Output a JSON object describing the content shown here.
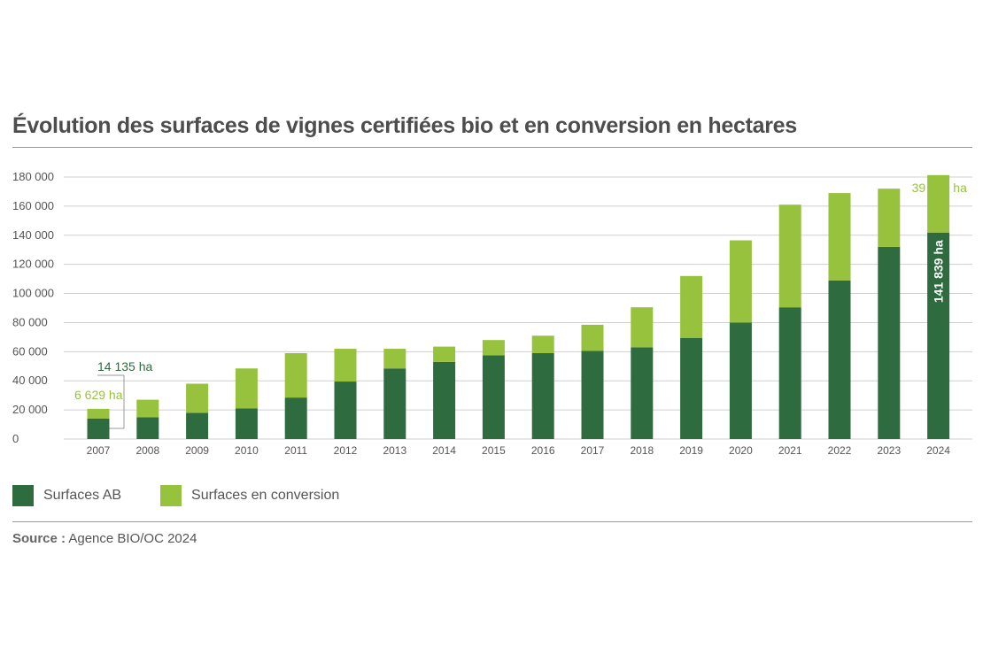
{
  "title": "Évolution des surfaces de vignes certifiées bio et en conversion en hectares",
  "colors": {
    "ab": "#2e6b3f",
    "conversion": "#97c23d",
    "grid": "#cfcfcf",
    "text": "#555555"
  },
  "legend": {
    "ab_label": "Surfaces AB",
    "conversion_label": "Surfaces en conversion"
  },
  "source": {
    "label": "Source :",
    "text": "Agence BIO/OC 2024"
  },
  "chart_data": {
    "type": "bar",
    "stacked": true,
    "categories": [
      "2007",
      "2008",
      "2009",
      "2010",
      "2011",
      "2012",
      "2013",
      "2014",
      "2015",
      "2016",
      "2017",
      "2018",
      "2019",
      "2020",
      "2021",
      "2022",
      "2023",
      "2024"
    ],
    "series": [
      {
        "name": "Surfaces AB",
        "color": "#2e6b3f",
        "values": [
          14135,
          15000,
          18000,
          21000,
          28500,
          39500,
          48500,
          53000,
          57500,
          59000,
          60500,
          63000,
          69500,
          80000,
          90500,
          109000,
          132000,
          141839
        ]
      },
      {
        "name": "Surfaces en conversion",
        "color": "#97c23d",
        "values": [
          6629,
          12000,
          20000,
          27500,
          30500,
          22500,
          13500,
          10500,
          10500,
          12000,
          18000,
          27500,
          42500,
          56500,
          70500,
          60000,
          40000,
          39475
        ]
      }
    ],
    "ylim": [
      0,
      180000
    ],
    "yticks": [
      0,
      20000,
      40000,
      60000,
      80000,
      100000,
      120000,
      140000,
      160000,
      180000
    ],
    "ytick_labels": [
      "0",
      "20 000",
      "40 000",
      "60 000",
      "80 000",
      "100 000",
      "120 000",
      "140 000",
      "160 000",
      "180 000"
    ],
    "grid": true,
    "legend_position": "bottom-left",
    "annotations": {
      "ab_2007": "14 135 ha",
      "conversion_2007": "6 629 ha",
      "ab_2024": "141 839 ha",
      "conversion_2024": "39 475 ha"
    }
  }
}
